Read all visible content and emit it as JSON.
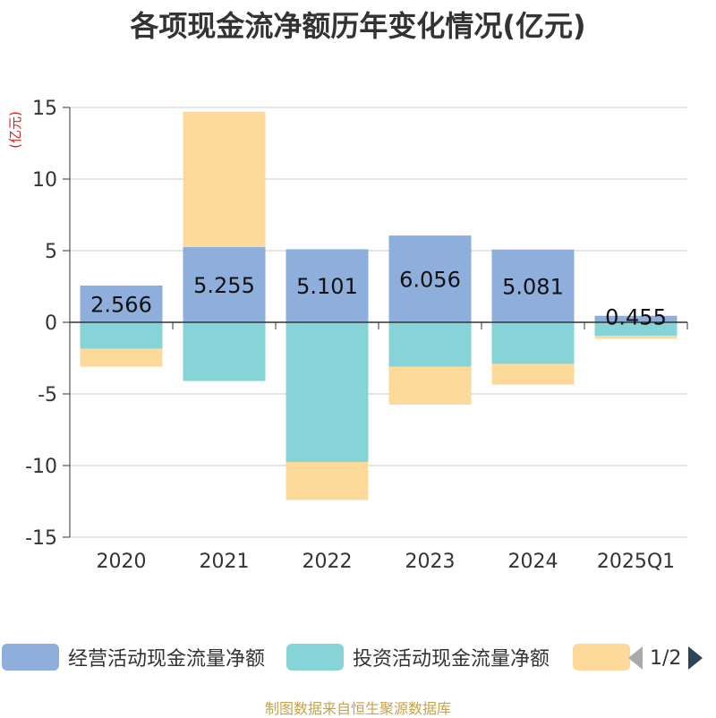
{
  "title": "各项现金流净额历年变化情况(亿元)",
  "source": "制图数据来自恒生聚源数据库",
  "pager": {
    "text": "1/2"
  },
  "chart_data": {
    "type": "bar",
    "stacked": true,
    "title": "各项现金流净额历年变化情况(亿元)",
    "ylabel": "(亿元)",
    "xlabel": "",
    "ylim": [
      -15,
      15
    ],
    "yticks": [
      "-15",
      "-10",
      "-5",
      "0",
      "5",
      "10",
      "15"
    ],
    "grid": true,
    "legend_position": "bottom",
    "categories": [
      "2020",
      "2021",
      "2022",
      "2023",
      "2024",
      "2025Q1"
    ],
    "series": [
      {
        "name": "经营活动现金流量净额",
        "color": "#8eaedb",
        "values": [
          2.566,
          5.255,
          5.101,
          6.056,
          5.081,
          0.455
        ],
        "labels": [
          "2.566",
          "5.255",
          "5.101",
          "6.056",
          "5.081",
          "0.455"
        ]
      },
      {
        "name": "投资活动现金流量净额",
        "color": "#86d4d8",
        "values": [
          -1.85,
          -4.1,
          -9.75,
          -3.1,
          -2.9,
          -0.95
        ]
      },
      {
        "name": "",
        "color": "#fdd99a",
        "values": [
          -1.25,
          9.45,
          -2.65,
          -2.65,
          -1.45,
          -0.2
        ]
      }
    ]
  }
}
